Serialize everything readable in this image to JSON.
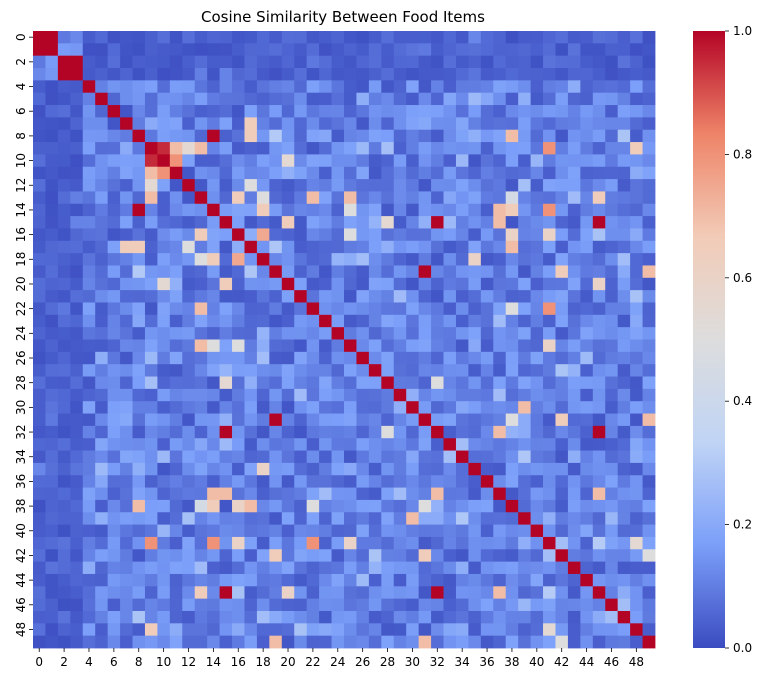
{
  "chart_data": {
    "type": "heatmap",
    "title": "Cosine Similarity Between Food Items",
    "size": 50,
    "x_tick_labels": [
      "0",
      "2",
      "4",
      "6",
      "8",
      "10",
      "12",
      "14",
      "16",
      "18",
      "20",
      "22",
      "24",
      "26",
      "28",
      "30",
      "32",
      "34",
      "36",
      "38",
      "40",
      "42",
      "44",
      "46",
      "48"
    ],
    "y_tick_labels": [
      "0",
      "2",
      "4",
      "6",
      "8",
      "10",
      "12",
      "14",
      "16",
      "18",
      "20",
      "22",
      "24",
      "26",
      "28",
      "30",
      "32",
      "34",
      "36",
      "38",
      "40",
      "42",
      "44",
      "46",
      "48"
    ],
    "colorbar": {
      "min": 0.0,
      "max": 1.0,
      "tick_labels": [
        "0.0",
        "0.2",
        "0.4",
        "0.6",
        "0.8",
        "1.0"
      ],
      "colormap": "coolwarm",
      "stops": [
        "#3b4cc0",
        "#7b9ff9",
        "#c0d4f5",
        "#dddddd",
        "#f2cbb7",
        "#ee8468",
        "#b40426"
      ]
    },
    "diagonal_value": 1.0,
    "diagonal_blocks": [
      [
        0,
        1
      ],
      [
        2,
        3
      ]
    ],
    "base_value": 0.1,
    "high_pairs": [
      [
        8,
        14,
        1.0
      ],
      [
        9,
        10,
        0.95
      ],
      [
        10,
        11,
        0.8
      ],
      [
        19,
        31,
        1.0
      ],
      [
        15,
        45,
        1.0
      ],
      [
        32,
        45,
        1.0
      ],
      [
        15,
        32,
        1.0
      ],
      [
        9,
        11,
        0.7
      ],
      [
        8,
        38,
        0.7
      ],
      [
        8,
        17,
        0.65
      ],
      [
        7,
        17,
        0.65
      ],
      [
        13,
        16,
        0.65
      ],
      [
        16,
        18,
        0.75
      ],
      [
        17,
        38,
        0.7
      ],
      [
        9,
        41,
        0.8
      ],
      [
        14,
        41,
        0.8
      ],
      [
        22,
        41,
        0.8
      ],
      [
        13,
        22,
        0.7
      ],
      [
        13,
        25,
        0.7
      ],
      [
        9,
        13,
        0.7
      ],
      [
        14,
        18,
        0.65
      ],
      [
        14,
        38,
        0.65
      ],
      [
        14,
        37,
        0.7
      ],
      [
        15,
        37,
        0.7
      ],
      [
        32,
        37,
        0.7
      ],
      [
        37,
        45,
        0.7
      ],
      [
        19,
        49,
        0.7
      ],
      [
        31,
        49,
        0.7
      ],
      [
        19,
        42,
        0.65
      ],
      [
        31,
        42,
        0.65
      ],
      [
        30,
        39,
        0.7
      ],
      [
        16,
        38,
        0.6
      ],
      [
        13,
        45,
        0.65
      ],
      [
        16,
        41,
        0.6
      ],
      [
        18,
        35,
        0.6
      ],
      [
        9,
        48,
        0.65
      ],
      [
        10,
        20,
        0.55
      ],
      [
        15,
        20,
        0.65
      ],
      [
        20,
        45,
        0.6
      ],
      [
        13,
        18,
        0.5
      ],
      [
        15,
        28,
        0.55
      ],
      [
        28,
        32,
        0.5
      ],
      [
        31,
        38,
        0.5
      ],
      [
        12,
        17,
        0.5
      ],
      [
        12,
        9,
        0.55
      ],
      [
        14,
        25,
        0.5
      ],
      [
        16,
        25,
        0.5
      ],
      [
        22,
        38,
        0.5
      ],
      [
        25,
        41,
        0.6
      ],
      [
        38,
        13,
        0.45
      ],
      [
        41,
        48,
        0.55
      ],
      [
        42,
        49,
        0.5
      ]
    ]
  }
}
